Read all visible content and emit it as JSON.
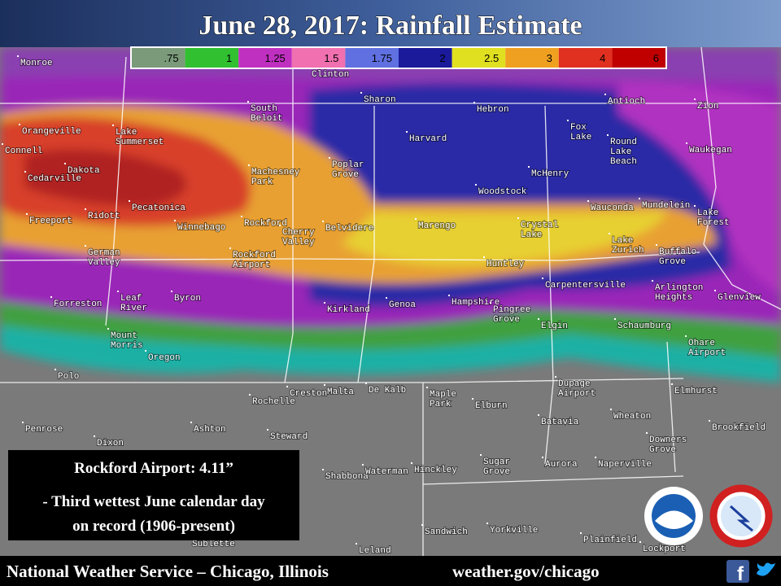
{
  "header": {
    "title": "June 28, 2017:  Rainfall Estimate"
  },
  "legend": {
    "labels": [
      ".75",
      "1",
      "1.25",
      "1.5",
      "1.75",
      "2",
      "2.5",
      "3",
      "4",
      "6"
    ]
  },
  "places": [
    [
      "Monroe"
    ],
    [
      "Clinton"
    ],
    [
      "Sharon"
    ],
    [
      "South",
      "Beloit"
    ],
    [
      "Hebron"
    ],
    [
      "Antioch"
    ],
    [
      "Zion"
    ],
    [
      "Orangeville"
    ],
    [
      "Lake",
      "Summerset"
    ],
    [
      "Harvard"
    ],
    [
      "Fox",
      "Lake"
    ],
    [
      "Round",
      "Lake",
      "Beach"
    ],
    [
      "Waukegan"
    ],
    [
      "Connell"
    ],
    [
      "Dakota"
    ],
    [
      "Cedarville"
    ],
    [
      "Machesney",
      "Park"
    ],
    [
      "Poplar",
      "Grove"
    ],
    [
      "McHenry"
    ],
    [
      "Woodstock"
    ],
    [
      "Pecatonica"
    ],
    [
      "Wauconda"
    ],
    [
      "Mundelein"
    ],
    [
      "Lake",
      "Forest"
    ],
    [
      "Freeport"
    ],
    [
      "Ridott"
    ],
    [
      "Winnebago"
    ],
    [
      "Rockford"
    ],
    [
      "Cherry",
      "Valley"
    ],
    [
      "Belvidere"
    ],
    [
      "Marengo"
    ],
    [
      "Crystal",
      "Lake"
    ],
    [
      "German",
      "Valley"
    ],
    [
      "Rockford",
      "Airport"
    ],
    [
      "Lake",
      "Zurich"
    ],
    [
      "Buffalo",
      "Grove"
    ],
    [
      "Huntley"
    ],
    [
      "Carpentersville"
    ],
    [
      "Arlington",
      "Heights"
    ],
    [
      "Glenview"
    ],
    [
      "Forreston"
    ],
    [
      "Leaf",
      "River"
    ],
    [
      "Byron"
    ],
    [
      "Kirkland"
    ],
    [
      "Genoa"
    ],
    [
      "Hampshire"
    ],
    [
      "Pingree",
      "Grove"
    ],
    [
      "Elgin"
    ],
    [
      "Schaumburg"
    ],
    [
      "Mount",
      "Morris"
    ],
    [
      "Ohare",
      "Airport"
    ],
    [
      "Oregon"
    ],
    [
      "Polo"
    ],
    [
      "Creston"
    ],
    [
      "Malta"
    ],
    [
      "De Kalb"
    ],
    [
      "Maple",
      "Park"
    ],
    [
      "Dupage",
      "Airport"
    ],
    [
      "Elmhurst"
    ],
    [
      "Rochelle"
    ],
    [
      "Elburn"
    ],
    [
      "Wheaton"
    ],
    [
      "Penrose"
    ],
    [
      "Ashton"
    ],
    [
      "Brookfield"
    ],
    [
      "Batavia"
    ],
    [
      "Steward"
    ],
    [
      "Dixon"
    ],
    [
      "Downers",
      "Grove"
    ],
    [
      "Shabbona"
    ],
    [
      "Waterman"
    ],
    [
      "Hinckley"
    ],
    [
      "Sugar",
      "Grove"
    ],
    [
      "Aurora"
    ],
    [
      "Naperville"
    ],
    [
      "Sandwich"
    ],
    [
      "Yorkville"
    ],
    [
      "Plainfield"
    ],
    [
      "Leland"
    ],
    [
      "Sublette"
    ],
    [
      "Lockport"
    ]
  ],
  "info_box": {
    "headline": "Rockford Airport:  4.11”",
    "lines": [
      "- Third wettest June calendar day",
      "on record (1906-present)"
    ]
  },
  "footer": {
    "office": "National Weather Service – Chicago, Illinois",
    "url": "weather.gov/chicago",
    "facebook": "f"
  }
}
